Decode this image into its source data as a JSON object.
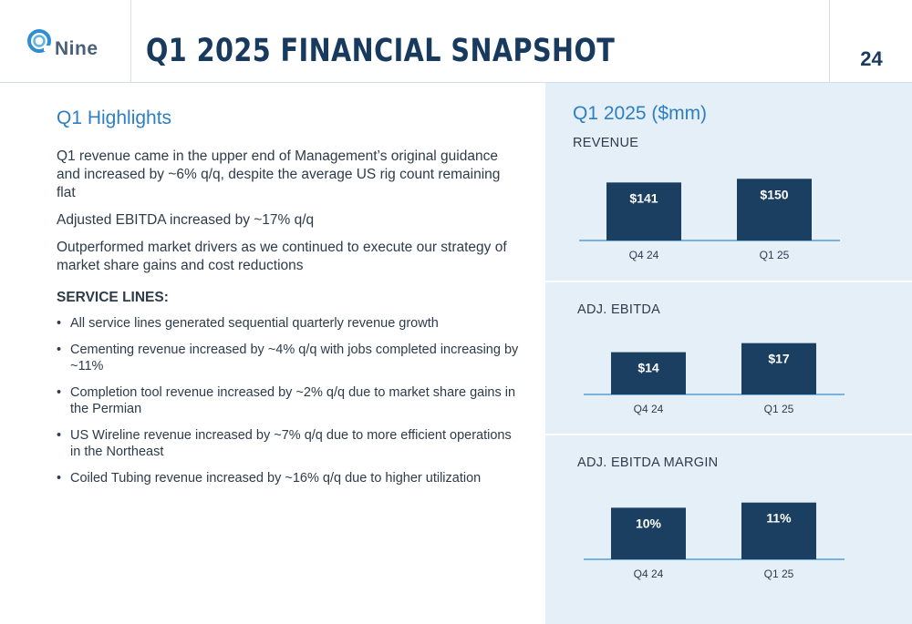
{
  "header": {
    "logo_text": "Nine",
    "title": "Q1 2025 FINANCIAL SNAPSHOT",
    "page_number": "24"
  },
  "highlights": {
    "title": "Q1 Highlights",
    "paragraphs": [
      "Q1 revenue came in the upper end of Management’s original guidance and increased by ~6% q/q, despite the average US rig count remaining flat",
      "Adjusted EBITDA increased by ~17% q/q",
      "Outperformed market drivers as we continued to execute our strategy of market share gains and cost reductions"
    ],
    "service_lines_title": "SERVICE LINES:",
    "bullets": [
      "All service lines generated sequential quarterly revenue growth",
      "Cementing revenue increased by ~4% q/q with jobs completed increasing by ~11%",
      "Completion tool revenue increased by ~2% q/q due to market share gains in the Permian",
      "US Wireline revenue increased by ~7% q/q due to more efficient operations in the Northeast",
      "Coiled Tubing revenue increased by ~16% q/q due to higher utilization"
    ]
  },
  "panel": {
    "title": "Q1 2025 ($mm)"
  },
  "chart_data": [
    {
      "type": "bar",
      "title": "REVENUE",
      "categories": [
        "Q4 24",
        "Q1 25"
      ],
      "values": [
        141,
        150
      ],
      "labels": [
        "$141",
        "$150"
      ],
      "ylim": [
        0,
        155
      ]
    },
    {
      "type": "bar",
      "title": "ADJ. EBITDA",
      "categories": [
        "Q4 24",
        "Q1 25"
      ],
      "values": [
        14,
        17
      ],
      "labels": [
        "$14",
        "$17"
      ],
      "ylim": [
        0,
        17.5
      ]
    },
    {
      "type": "bar",
      "title": "ADJ. EBITDA MARGIN",
      "categories": [
        "Q4 24",
        "Q1 25"
      ],
      "values": [
        10,
        11
      ],
      "labels": [
        "10%",
        "11%"
      ],
      "ylim": [
        0,
        11.3
      ]
    }
  ],
  "colors": {
    "bar": "#1b3f60",
    "accent": "#2e7fc1",
    "title": "#173a5e",
    "panel_bg": "#e5eff8"
  }
}
